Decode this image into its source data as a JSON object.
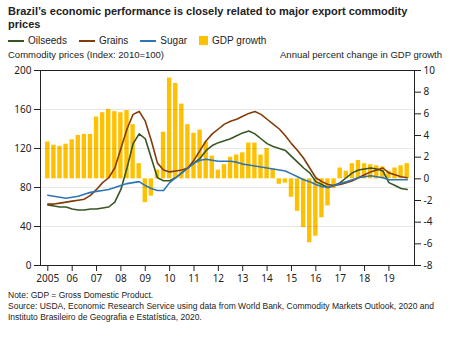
{
  "chart_data": {
    "type": "line",
    "title": "Brazil’s economic performance is closely related to major export commodity prices",
    "ylabel": "Commodity prices (Index: 2010=100)",
    "y2label": "Annual percent change in GDP growth",
    "annotations": [
      "Note: GDP = Gross Domestic Product.",
      "Source: USDA, Economic Research Service using data from World Bank, Commodity Markets Outlook, 2020 and Instituto Brasileiro de Geografia e Estatística, 2020."
    ],
    "x": [
      2005.0,
      2005.25,
      2005.5,
      2005.75,
      2006.0,
      2006.25,
      2006.5,
      2006.75,
      2007.0,
      2007.25,
      2007.5,
      2007.75,
      2008.0,
      2008.25,
      2008.5,
      2008.75,
      2009.0,
      2009.25,
      2009.5,
      2009.75,
      2010.0,
      2010.25,
      2010.5,
      2010.75,
      2011.0,
      2011.25,
      2011.5,
      2011.75,
      2012.0,
      2012.25,
      2012.5,
      2012.75,
      2013.0,
      2013.25,
      2013.5,
      2013.75,
      2014.0,
      2014.25,
      2014.5,
      2014.75,
      2015.0,
      2015.25,
      2015.5,
      2015.75,
      2016.0,
      2016.25,
      2016.5,
      2016.75,
      2017.0,
      2017.25,
      2017.5,
      2017.75,
      2018.0,
      2018.25,
      2018.5,
      2018.75,
      2019.0,
      2019.25,
      2019.5,
      2019.75
    ],
    "xlim": [
      2004.7,
      2020.05
    ],
    "xticks": [
      2005,
      {
        "value": 2006,
        "label": "06"
      },
      {
        "value": 2007,
        "label": "07"
      },
      {
        "value": 2008,
        "label": "08"
      },
      {
        "value": 2009,
        "label": "09"
      },
      {
        "value": 2010,
        "label": "10"
      },
      {
        "value": 2011,
        "label": "11"
      },
      {
        "value": 2012,
        "label": "12"
      },
      {
        "value": 2013,
        "label": "13"
      },
      {
        "value": 2014,
        "label": "14"
      },
      {
        "value": 2015,
        "label": "15"
      },
      {
        "value": 2016,
        "label": "16"
      },
      {
        "value": 2017,
        "label": "17"
      },
      {
        "value": 2018,
        "label": "18"
      },
      {
        "value": 2019,
        "label": "19"
      }
    ],
    "ylim": [
      0,
      200
    ],
    "yticks": [
      0,
      40,
      80,
      120,
      160,
      200
    ],
    "y2lim": [
      -8,
      10
    ],
    "y2ticks": [
      -8,
      -6,
      -4,
      -2,
      0,
      2,
      4,
      6,
      8,
      10
    ],
    "grid": true,
    "legend": "top",
    "series": [
      {
        "name": "Oilseeds",
        "type": "line",
        "color": "#375623",
        "values": [
          62,
          61,
          60,
          60,
          58,
          57,
          57,
          58,
          58,
          59,
          60,
          65,
          78,
          100,
          125,
          135,
          130,
          110,
          90,
          87,
          87,
          90,
          95,
          100,
          105,
          110,
          118,
          123,
          126,
          128,
          130,
          133,
          136,
          138,
          135,
          130,
          125,
          122,
          120,
          118,
          112,
          106,
          100,
          95,
          86,
          83,
          80,
          82,
          85,
          90,
          95,
          98,
          99,
          100,
          99,
          97,
          85,
          82,
          79,
          78
        ]
      },
      {
        "name": "Grains",
        "type": "line",
        "color": "#833B07",
        "values": [
          63,
          63,
          64,
          65,
          66,
          67,
          68,
          72,
          78,
          85,
          90,
          100,
          120,
          140,
          155,
          158,
          148,
          128,
          105,
          98,
          96,
          97,
          98,
          100,
          108,
          118,
          128,
          135,
          140,
          145,
          148,
          150,
          153,
          156,
          158,
          155,
          150,
          145,
          140,
          133,
          125,
          118,
          110,
          100,
          90,
          86,
          83,
          82,
          83,
          85,
          87,
          90,
          93,
          96,
          98,
          100,
          95,
          93,
          91,
          90
        ]
      },
      {
        "name": "Sugar",
        "type": "line",
        "color": "#2E75B6",
        "values": [
          72,
          71,
          70,
          69,
          70,
          71,
          73,
          75,
          76,
          77,
          78,
          80,
          82,
          84,
          85,
          86,
          82,
          79,
          77,
          77,
          85,
          90,
          95,
          100,
          105,
          108,
          109,
          108,
          107,
          107,
          107,
          106,
          104,
          103,
          102,
          101,
          100,
          99,
          98,
          97,
          94,
          91,
          88,
          86,
          83,
          81,
          80,
          82,
          84,
          86,
          88,
          90,
          91,
          92,
          91,
          90,
          88,
          88,
          88,
          88
        ]
      },
      {
        "name": "GDP growth",
        "type": "bar",
        "axis": "y2",
        "color": "#FFC000",
        "values": [
          3.4,
          3.1,
          3.0,
          3.2,
          3.6,
          4.0,
          4.1,
          4.1,
          5.7,
          6.1,
          6.4,
          6.2,
          6.1,
          6.3,
          5.0,
          1.4,
          -2.2,
          -1.6,
          0.8,
          4.3,
          9.3,
          8.8,
          6.9,
          5.0,
          4.2,
          4.5,
          3.4,
          2.1,
          0.8,
          1.3,
          2.0,
          2.2,
          2.4,
          3.3,
          3.3,
          2.2,
          2.8,
          0.9,
          -0.5,
          -0.4,
          -1.7,
          -3.0,
          -4.5,
          -5.9,
          -5.3,
          -3.6,
          -2.5,
          -0.9,
          1.0,
          0.7,
          1.4,
          1.7,
          1.4,
          1.3,
          1.2,
          1.1,
          0.7,
          1.0,
          1.2,
          1.4
        ]
      }
    ]
  }
}
